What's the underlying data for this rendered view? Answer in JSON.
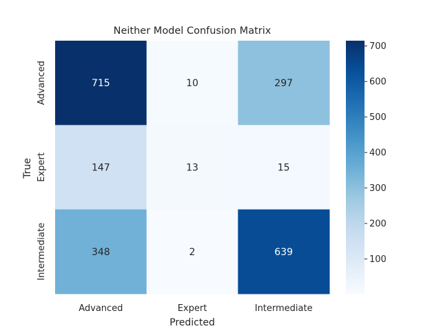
{
  "chart_data": {
    "type": "heatmap",
    "title": "Neither Model Confusion Matrix",
    "xlabel": "Predicted",
    "ylabel": "True",
    "x_categories": [
      "Advanced",
      "Expert",
      "Intermediate"
    ],
    "y_categories": [
      "Advanced",
      "Expert",
      "Intermediate"
    ],
    "values": [
      [
        715,
        10,
        297
      ],
      [
        147,
        13,
        15
      ],
      [
        348,
        2,
        639
      ]
    ],
    "colormap": "Blues",
    "color_range": [
      2,
      715
    ],
    "colorbar": {
      "ticks": [
        100,
        200,
        300,
        400,
        500,
        600,
        700
      ],
      "tick_labels": [
        "100",
        "200",
        "300",
        "400",
        "500",
        "600",
        "700"
      ],
      "position": "right"
    },
    "annotations": true,
    "grid": false
  }
}
